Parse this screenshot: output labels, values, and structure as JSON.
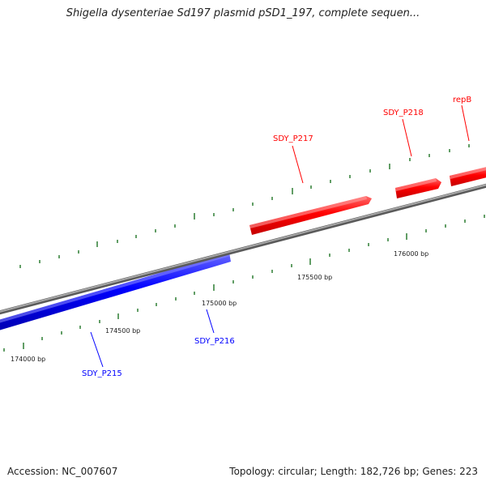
{
  "header": {
    "title": "Shigella dysenteriae Sd197 plasmid pSD1_197, complete sequen..."
  },
  "footer": {
    "accession": "Accession: NC_007607",
    "summary": "Topology: circular; Length: 182,726 bp; Genes: 223"
  },
  "colors": {
    "forward_gene": "#ff0000",
    "reverse_gene": "#0000ff",
    "backbone": "#888888",
    "ticks": "#2e7d32"
  },
  "genes": [
    {
      "name": "SDY_P215",
      "strand": "reverse",
      "color": "#0000ff"
    },
    {
      "name": "SDY_P216",
      "strand": "reverse",
      "color": "#0000ff"
    },
    {
      "name": "SDY_P217",
      "strand": "forward",
      "color": "#ff0000"
    },
    {
      "name": "SDY_P218",
      "strand": "forward",
      "color": "#ff0000"
    },
    {
      "name": "repB",
      "strand": "forward",
      "color": "#ff0000"
    }
  ],
  "ticks": [
    {
      "label": "174000 bp"
    },
    {
      "label": "174500 bp"
    },
    {
      "label": "175000 bp"
    },
    {
      "label": "175500 bp"
    },
    {
      "label": "176000 bp"
    }
  ]
}
